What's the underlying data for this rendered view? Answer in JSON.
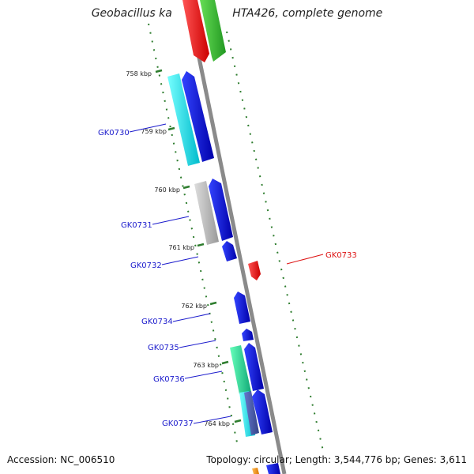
{
  "title": "Geobacillus kaustophilus HTA426, complete genome",
  "accession": "Accession: NC_006510",
  "topology": "Topology: circular; Length: 3,544,776 bp; Genes: 3,611",
  "colors": {
    "backbone": "#8a8a8a",
    "tick": "#2e7d2e",
    "label_forward": "#1a1acc",
    "label_reverse": "#dd1111"
  },
  "scale_labels": [
    "758 kbp",
    "759 kbp",
    "760 kbp",
    "761 kbp",
    "762 kbp",
    "763 kbp",
    "764 kbp"
  ],
  "gene_labels": [
    {
      "name": "GK0730",
      "color": "#1a1acc"
    },
    {
      "name": "GK0731",
      "color": "#1a1acc"
    },
    {
      "name": "GK0732",
      "color": "#1a1acc"
    },
    {
      "name": "GK0733",
      "color": "#dd1111"
    },
    {
      "name": "GK0734",
      "color": "#1a1acc"
    },
    {
      "name": "GK0735",
      "color": "#1a1acc"
    },
    {
      "name": "GK0736",
      "color": "#1a1acc"
    },
    {
      "name": "GK0737",
      "color": "#1a1acc"
    }
  ]
}
